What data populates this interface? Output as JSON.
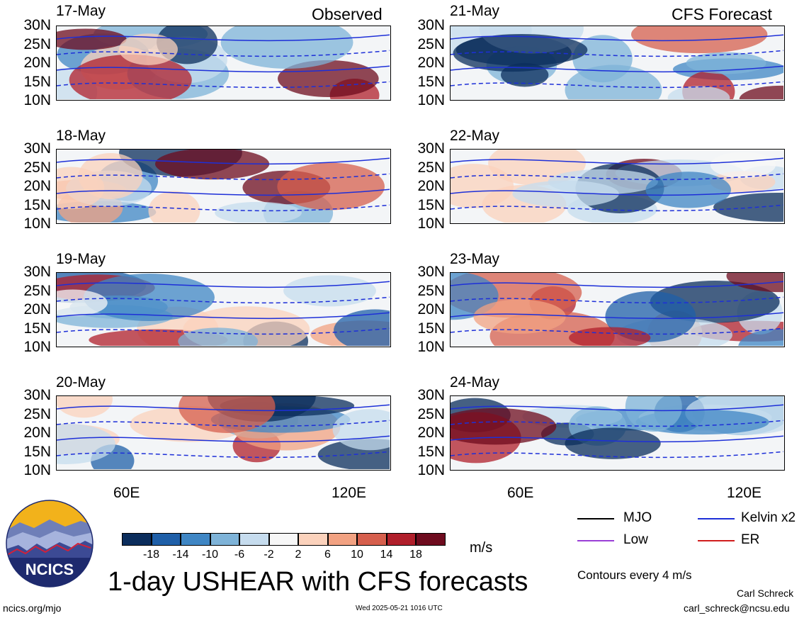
{
  "chart_data": {
    "type": "heatmap",
    "title": "1-day USHEAR with CFS forecasts",
    "units": "m/s",
    "lat_labels": [
      "30N",
      "25N",
      "20N",
      "15N",
      "10N"
    ],
    "lon_labels": [
      "60E",
      "120E"
    ],
    "lat_range": [
      10,
      30
    ],
    "lon_range": [
      40,
      130
    ],
    "headers": {
      "observed": "Observed",
      "forecast": "CFS Forecast"
    },
    "panels": [
      {
        "date": "17-May",
        "group": "observed"
      },
      {
        "date": "18-May",
        "group": "observed"
      },
      {
        "date": "19-May",
        "group": "observed"
      },
      {
        "date": "20-May",
        "group": "observed"
      },
      {
        "date": "21-May",
        "group": "forecast"
      },
      {
        "date": "22-May",
        "group": "forecast"
      },
      {
        "date": "23-May",
        "group": "forecast"
      },
      {
        "date": "24-May",
        "group": "forecast"
      }
    ],
    "colorbar": {
      "ticks": [
        "-18",
        "-14",
        "-10",
        "-6",
        "-2",
        "2",
        "6",
        "10",
        "14",
        "18"
      ],
      "colors": [
        "#0b2d5c",
        "#1f5fa8",
        "#3f86c4",
        "#7eb3d8",
        "#c6dcee",
        "#f7f7f7",
        "#fbd2bc",
        "#f2a282",
        "#d65f4d",
        "#b01f2b",
        "#6e0b1e"
      ]
    },
    "contour_legend": [
      {
        "label": "MJO",
        "color": "#000000"
      },
      {
        "label": "Kelvin x2",
        "color": "#1d2fd8"
      },
      {
        "label": "Low",
        "color": "#9a3fd6"
      },
      {
        "label": "ER",
        "color": "#d01d1d"
      }
    ],
    "contour_note": "Contours every 4 m/s"
  },
  "footer": {
    "org_url": "ncics.org/mjo",
    "timestamp": "Wed 2025-05-21 1016 UTC",
    "author": "Carl Schreck",
    "email": "carl_schreck@ncsu.edu",
    "logo_text": "NCICS"
  }
}
